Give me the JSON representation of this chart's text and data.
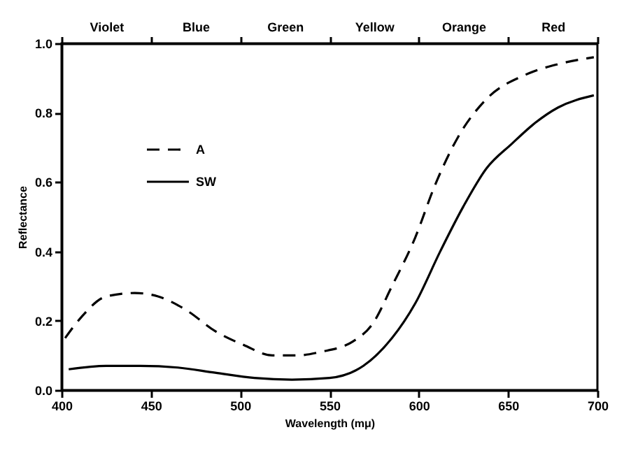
{
  "chart_data": {
    "type": "line",
    "xlabel": "Wavelength (mμ)",
    "ylabel": "Reflectance",
    "xlim": [
      400,
      700
    ],
    "xticks": [
      400,
      450,
      500,
      550,
      600,
      650,
      700
    ],
    "ylim": [
      0,
      1.0
    ],
    "yticks": [
      {
        "value": 0,
        "label": "0.0"
      },
      0.2,
      0.4,
      0.6,
      0.8,
      {
        "value": 1,
        "label": "1.0"
      }
    ],
    "annotations": [
      "Violet",
      "Blue",
      "Green",
      "Yellow",
      "Orange",
      "Red"
    ],
    "legend": "top left",
    "grid": false,
    "marker": "none",
    "series": [
      {
        "name": "A",
        "color": "#000000",
        "line_style": "dashed",
        "x": [
          402,
          411,
          425,
          441,
          454,
          470,
          486,
          502,
          518,
          532,
          545,
          563,
          574,
          585,
          598,
          609,
          622,
          638,
          660,
          678,
          698
        ],
        "values": [
          0.15,
          0.21,
          0.27,
          0.28,
          0.27,
          0.23,
          0.17,
          0.13,
          0.1,
          0.1,
          0.11,
          0.14,
          0.19,
          0.3,
          0.44,
          0.59,
          0.73,
          0.84,
          0.91,
          0.94,
          0.96
        ]
      },
      {
        "name": "SW",
        "color": "#000000",
        "line_style": "solid",
        "x": [
          404,
          425,
          444,
          465,
          486,
          508,
          529,
          550,
          569,
          585,
          598,
          612,
          625,
          638,
          652,
          665,
          678,
          698
        ],
        "values": [
          0.06,
          0.07,
          0.07,
          0.065,
          0.05,
          0.035,
          0.03,
          0.035,
          0.07,
          0.15,
          0.25,
          0.4,
          0.53,
          0.64,
          0.71,
          0.77,
          0.815,
          0.85
        ]
      }
    ]
  }
}
